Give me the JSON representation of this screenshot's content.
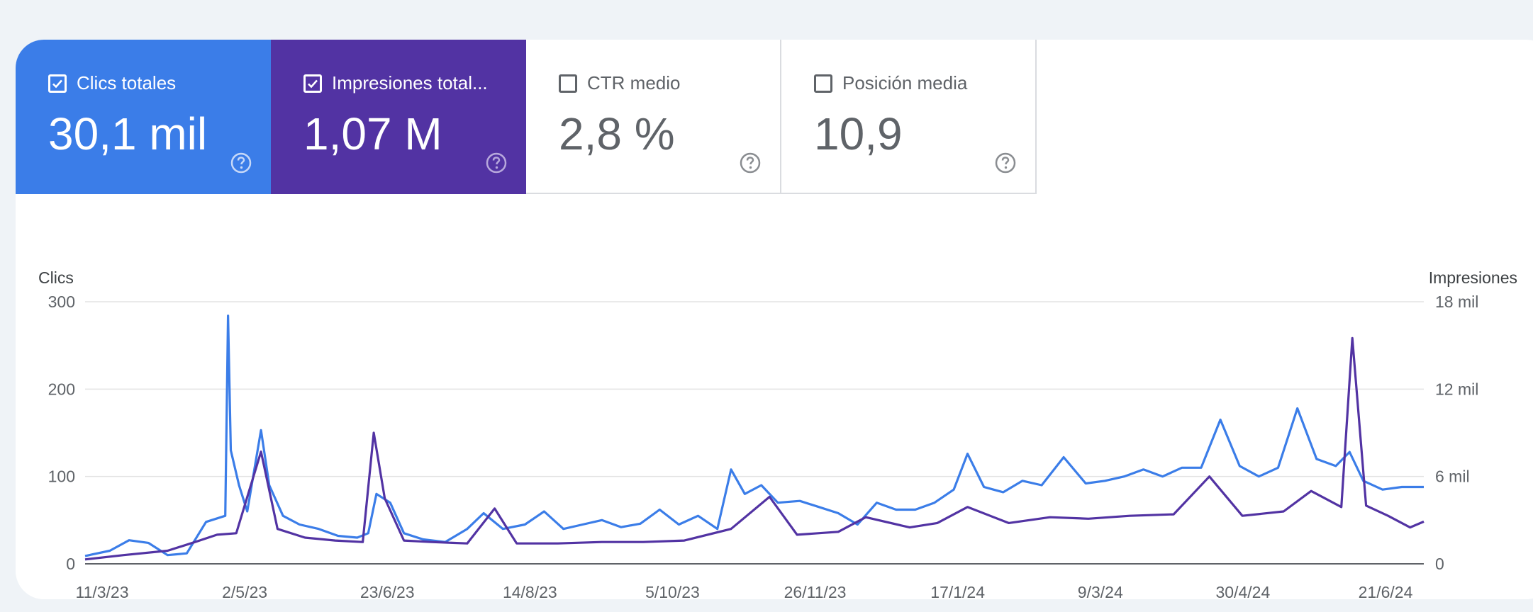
{
  "metrics": [
    {
      "label": "Clics totales",
      "value": "30,1 mil",
      "checked": true,
      "color": "#3b7de8"
    },
    {
      "label": "Impresiones total...",
      "value": "1,07 M",
      "checked": true,
      "color": "#5233a3"
    },
    {
      "label": "CTR medio",
      "value": "2,8 %",
      "checked": false
    },
    {
      "label": "Posición media",
      "value": "10,9",
      "checked": false
    }
  ],
  "chart_data": {
    "type": "line",
    "grid": true,
    "y_left": {
      "title": "Clics",
      "ticks": [
        "300",
        "200",
        "100",
        "0"
      ],
      "range": [
        0,
        300
      ]
    },
    "y_right": {
      "title": "Impresiones",
      "ticks": [
        "18 mil",
        "12 mil",
        "6 mil",
        "0"
      ],
      "range": [
        0,
        18000
      ]
    },
    "x_ticks": [
      "11/3/23",
      "2/5/23",
      "23/6/23",
      "14/8/23",
      "5/10/23",
      "26/11/23",
      "17/1/24",
      "9/3/24",
      "30/4/24",
      "21/6/24"
    ],
    "x_range": [
      "2023-03-11",
      "2024-07-10"
    ],
    "series": [
      {
        "name": "Clics totales",
        "axis": "left",
        "color": "#3b7de8",
        "points": [
          [
            "2023-03-11",
            9
          ],
          [
            "2023-03-20",
            15
          ],
          [
            "2023-03-27",
            27
          ],
          [
            "2023-04-03",
            24
          ],
          [
            "2023-04-10",
            10
          ],
          [
            "2023-04-17",
            12
          ],
          [
            "2023-04-24",
            48
          ],
          [
            "2023-05-01",
            55
          ],
          [
            "2023-05-02",
            284
          ],
          [
            "2023-05-03",
            130
          ],
          [
            "2023-05-06",
            90
          ],
          [
            "2023-05-09",
            60
          ],
          [
            "2023-05-14",
            153
          ],
          [
            "2023-05-17",
            90
          ],
          [
            "2023-05-22",
            55
          ],
          [
            "2023-05-28",
            45
          ],
          [
            "2023-06-04",
            40
          ],
          [
            "2023-06-11",
            32
          ],
          [
            "2023-06-18",
            30
          ],
          [
            "2023-06-22",
            35
          ],
          [
            "2023-06-25",
            80
          ],
          [
            "2023-06-30",
            70
          ],
          [
            "2023-07-05",
            35
          ],
          [
            "2023-07-12",
            28
          ],
          [
            "2023-07-20",
            25
          ],
          [
            "2023-07-28",
            40
          ],
          [
            "2023-08-03",
            58
          ],
          [
            "2023-08-10",
            40
          ],
          [
            "2023-08-18",
            45
          ],
          [
            "2023-08-25",
            60
          ],
          [
            "2023-09-01",
            40
          ],
          [
            "2023-09-08",
            45
          ],
          [
            "2023-09-15",
            50
          ],
          [
            "2023-09-22",
            42
          ],
          [
            "2023-09-29",
            46
          ],
          [
            "2023-10-06",
            62
          ],
          [
            "2023-10-13",
            45
          ],
          [
            "2023-10-20",
            55
          ],
          [
            "2023-10-27",
            40
          ],
          [
            "2023-11-01",
            108
          ],
          [
            "2023-11-06",
            80
          ],
          [
            "2023-11-12",
            90
          ],
          [
            "2023-11-18",
            70
          ],
          [
            "2023-11-26",
            72
          ],
          [
            "2023-12-03",
            65
          ],
          [
            "2023-12-10",
            58
          ],
          [
            "2023-12-17",
            45
          ],
          [
            "2023-12-24",
            70
          ],
          [
            "2023-12-31",
            62
          ],
          [
            "2024-01-07",
            62
          ],
          [
            "2024-01-14",
            70
          ],
          [
            "2024-01-21",
            85
          ],
          [
            "2024-01-26",
            126
          ],
          [
            "2024-02-01",
            88
          ],
          [
            "2024-02-08",
            82
          ],
          [
            "2024-02-15",
            95
          ],
          [
            "2024-02-22",
            90
          ],
          [
            "2024-03-01",
            122
          ],
          [
            "2024-03-09",
            92
          ],
          [
            "2024-03-16",
            95
          ],
          [
            "2024-03-23",
            100
          ],
          [
            "2024-03-30",
            108
          ],
          [
            "2024-04-06",
            100
          ],
          [
            "2024-04-13",
            110
          ],
          [
            "2024-04-20",
            110
          ],
          [
            "2024-04-27",
            165
          ],
          [
            "2024-05-04",
            112
          ],
          [
            "2024-05-11",
            100
          ],
          [
            "2024-05-18",
            110
          ],
          [
            "2024-05-25",
            178
          ],
          [
            "2024-06-01",
            120
          ],
          [
            "2024-06-08",
            112
          ],
          [
            "2024-06-13",
            128
          ],
          [
            "2024-06-18",
            95
          ],
          [
            "2024-06-25",
            85
          ],
          [
            "2024-07-02",
            88
          ],
          [
            "2024-07-10",
            88
          ]
        ]
      },
      {
        "name": "Impresiones totales",
        "axis": "right",
        "color": "#5233a3",
        "points": [
          [
            "2023-03-11",
            300
          ],
          [
            "2023-03-25",
            600
          ],
          [
            "2023-04-10",
            900
          ],
          [
            "2023-04-20",
            1500
          ],
          [
            "2023-04-28",
            2000
          ],
          [
            "2023-05-05",
            2100
          ],
          [
            "2023-05-14",
            7700
          ],
          [
            "2023-05-20",
            2400
          ],
          [
            "2023-05-30",
            1800
          ],
          [
            "2023-06-10",
            1600
          ],
          [
            "2023-06-20",
            1500
          ],
          [
            "2023-06-24",
            9000
          ],
          [
            "2023-06-28",
            4500
          ],
          [
            "2023-07-05",
            1600
          ],
          [
            "2023-07-15",
            1500
          ],
          [
            "2023-07-28",
            1400
          ],
          [
            "2023-08-07",
            3800
          ],
          [
            "2023-08-15",
            1400
          ],
          [
            "2023-08-30",
            1400
          ],
          [
            "2023-09-15",
            1500
          ],
          [
            "2023-09-30",
            1500
          ],
          [
            "2023-10-15",
            1600
          ],
          [
            "2023-11-01",
            2400
          ],
          [
            "2023-11-15",
            4600
          ],
          [
            "2023-11-25",
            2000
          ],
          [
            "2023-12-10",
            2200
          ],
          [
            "2023-12-20",
            3200
          ],
          [
            "2024-01-05",
            2500
          ],
          [
            "2024-01-15",
            2800
          ],
          [
            "2024-01-26",
            3900
          ],
          [
            "2024-02-10",
            2800
          ],
          [
            "2024-02-25",
            3200
          ],
          [
            "2024-03-10",
            3100
          ],
          [
            "2024-03-25",
            3300
          ],
          [
            "2024-04-10",
            3400
          ],
          [
            "2024-04-23",
            6000
          ],
          [
            "2024-05-05",
            3300
          ],
          [
            "2024-05-20",
            3600
          ],
          [
            "2024-05-30",
            5000
          ],
          [
            "2024-06-10",
            3900
          ],
          [
            "2024-06-14",
            15500
          ],
          [
            "2024-06-19",
            4000
          ],
          [
            "2024-06-27",
            3300
          ],
          [
            "2024-07-05",
            2500
          ],
          [
            "2024-07-10",
            2900
          ]
        ]
      }
    ]
  }
}
